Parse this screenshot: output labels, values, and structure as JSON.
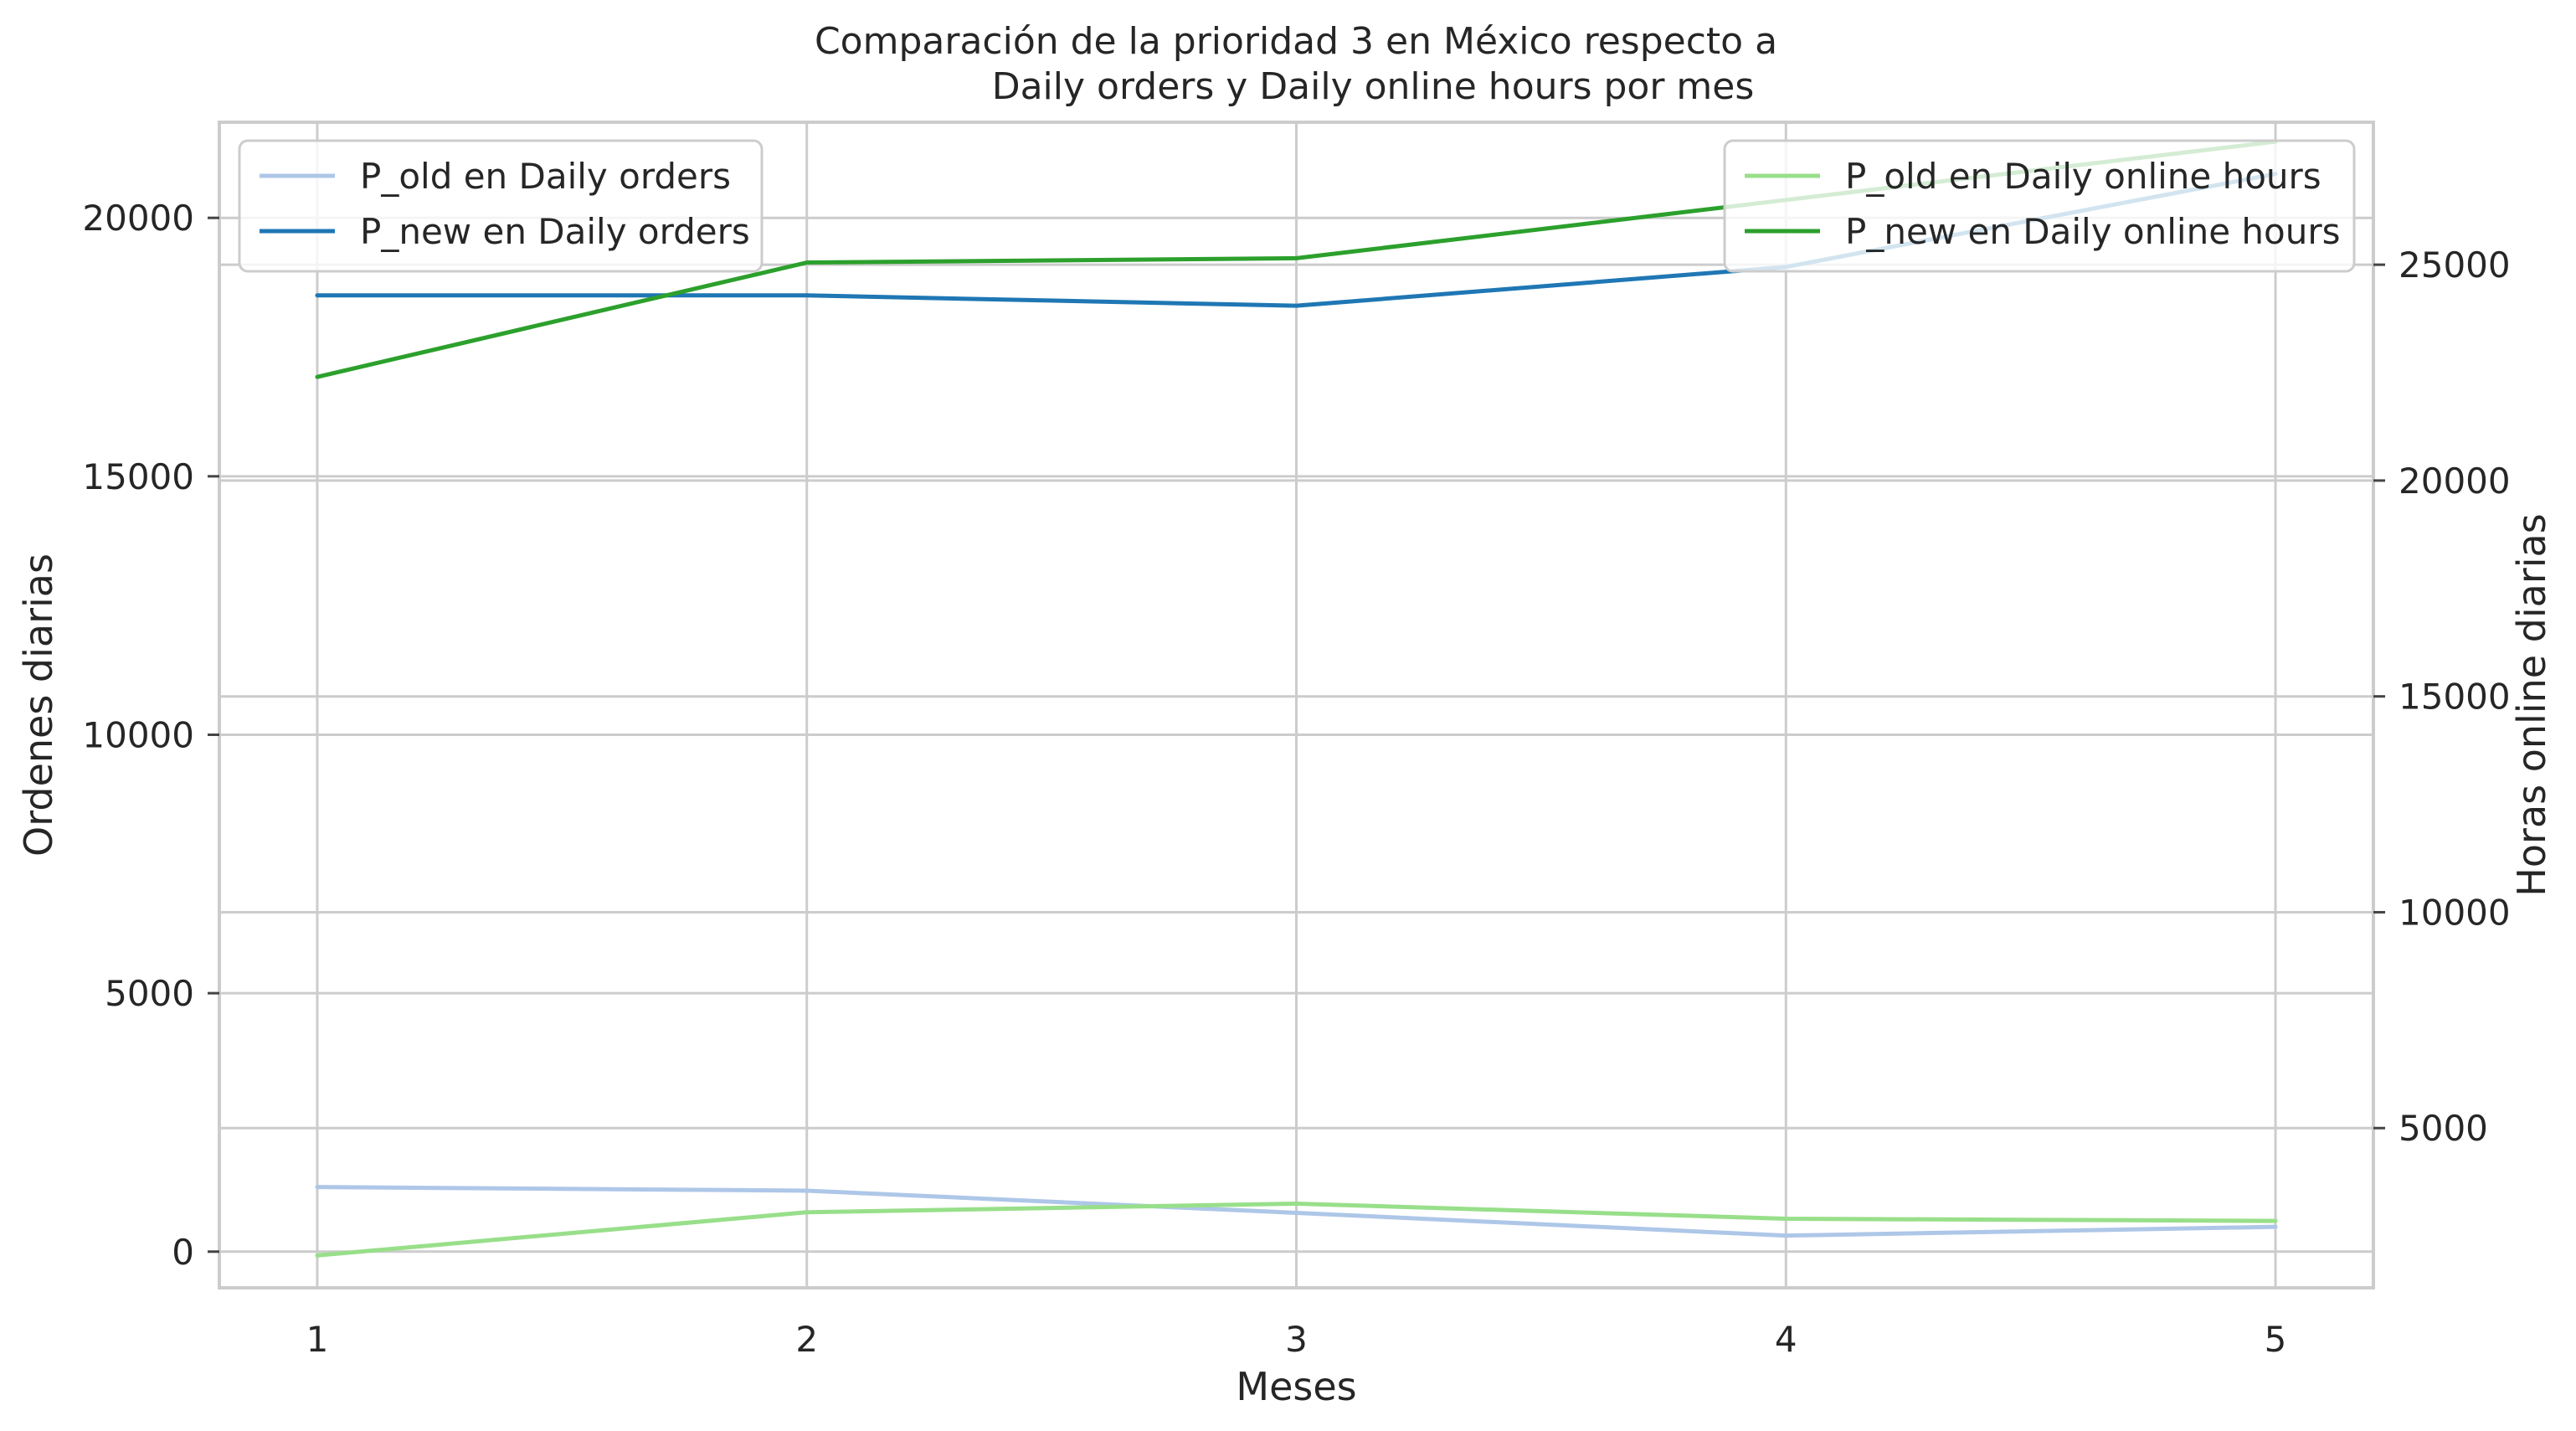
{
  "chart_data": {
    "type": "line",
    "title_line1": "Comparación de la prioridad 3 en México respecto a",
    "title_line2": "Daily orders y Daily online hours por mes",
    "xlabel": "Meses",
    "ylabel_left": "Ordenes diarias",
    "ylabel_right": "Horas online diarias",
    "x": [
      1,
      2,
      3,
      4,
      5
    ],
    "xlim": [
      0.8,
      5.2
    ],
    "ylim_left": [
      -700,
      21850
    ],
    "ylim_right": [
      1300,
      28300
    ],
    "left_ticks": [
      0,
      5000,
      10000,
      15000,
      20000
    ],
    "right_ticks": [
      5000,
      10000,
      15000,
      20000,
      25000
    ],
    "grid": true,
    "series_left": [
      {
        "name": "P_old en Daily orders",
        "color": "#aec7e8",
        "values": [
          1250,
          1180,
          750,
          310,
          480
        ]
      },
      {
        "name": "P_new en Daily orders",
        "color": "#1f77b4",
        "values": [
          18500,
          18500,
          18300,
          19050,
          20850
        ]
      }
    ],
    "series_right": [
      {
        "name": "P_old en Daily online hours",
        "color": "#98df8a",
        "values": [
          2050,
          3050,
          3250,
          2900,
          2850
        ]
      },
      {
        "name": "P_new en Daily online hours",
        "color": "#2ca02c",
        "values": [
          22400,
          25050,
          25150,
          26500,
          27850
        ]
      }
    ],
    "legend_left_position": "upper left",
    "legend_right_position": "upper right"
  }
}
